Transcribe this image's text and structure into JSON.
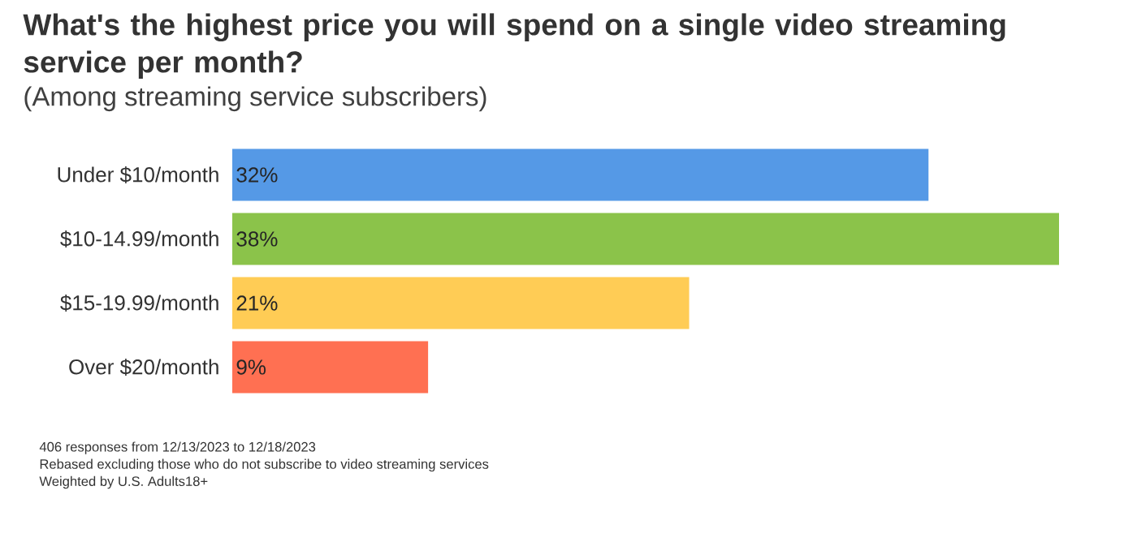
{
  "chart_data": {
    "type": "bar",
    "orientation": "horizontal",
    "title": "What's the highest price you will spend on a single video streaming service per month?",
    "subtitle": "(Among streaming service subscribers)",
    "categories": [
      "Under $10/month",
      "$10-14.99/month",
      "$15-19.99/month",
      "Over $20/month"
    ],
    "values": [
      32,
      38,
      21,
      9
    ],
    "colors": [
      "#5599e6",
      "#8bc34a",
      "#ffcc55",
      "#ff7052"
    ],
    "value_labels": [
      "32%",
      "38%",
      "21%",
      "9%"
    ],
    "annotations": [
      "406 responses from 12/13/2023 to 12/18/2023",
      "Rebased excluding those who do not subscribe to video streaming services",
      "Weighted by U.S. Adults18+"
    ]
  }
}
